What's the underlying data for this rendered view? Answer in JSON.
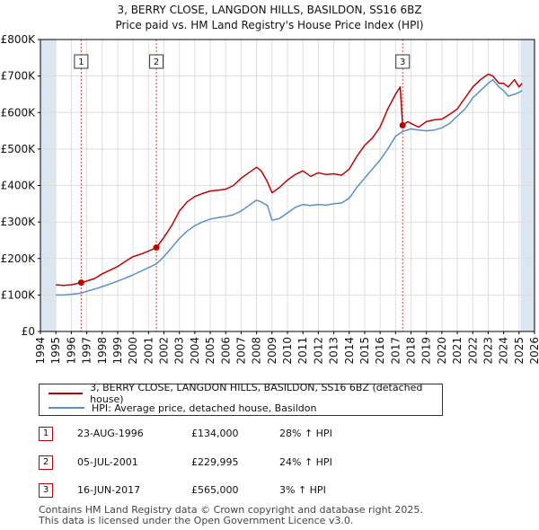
{
  "title": {
    "line1": "3, BERRY CLOSE, LANGDON HILLS, BASILDON, SS16 6BZ",
    "line2": "Price paid vs. HM Land Registry's House Price Index (HPI)"
  },
  "colors": {
    "property": "#c00000",
    "hpi": "#5b8fc9",
    "grid": "#dddddd",
    "shade": "#dce6f1",
    "vline": "#e04040"
  },
  "legend": {
    "property_label": "3, BERRY CLOSE, LANGDON HILLS, BASILDON, SS16 6BZ (detached house)",
    "hpi_label": "HPI: Average price, detached house, Basildon"
  },
  "sales": [
    {
      "num": "1",
      "date": "23-AUG-1996",
      "price": "£134,000",
      "hpi_change": "28% ↑ HPI"
    },
    {
      "num": "2",
      "date": "05-JUL-2001",
      "price": "£229,995",
      "hpi_change": "24% ↑ HPI"
    },
    {
      "num": "3",
      "date": "16-JUN-2017",
      "price": "£565,000",
      "hpi_change": "3% ↑ HPI"
    }
  ],
  "footer": {
    "line1": "Contains HM Land Registry data © Crown copyright and database right 2025.",
    "line2": "This data is licensed under the Open Government Licence v3.0."
  },
  "chart_data": {
    "type": "line",
    "title": "Price paid vs. HM Land Registry's House Price Index (HPI)",
    "xlabel": "",
    "ylabel": "",
    "xlim": [
      1994,
      2026
    ],
    "ylim": [
      0,
      800000
    ],
    "x_ticks": [
      1994,
      1995,
      1996,
      1997,
      1998,
      1999,
      2000,
      2001,
      2002,
      2003,
      2004,
      2005,
      2006,
      2007,
      2008,
      2009,
      2010,
      2011,
      2012,
      2013,
      2014,
      2015,
      2016,
      2017,
      2018,
      2019,
      2020,
      2021,
      2022,
      2023,
      2024,
      2025,
      2026
    ],
    "y_ticks": [
      0,
      100000,
      200000,
      300000,
      400000,
      500000,
      600000,
      700000,
      800000
    ],
    "y_tick_labels": [
      "£0",
      "£100K",
      "£200K",
      "£300K",
      "£400K",
      "£500K",
      "£600K",
      "£700K",
      "£800K"
    ],
    "shaded_ranges": [
      [
        1994,
        1995
      ],
      [
        2025.1,
        2026
      ]
    ],
    "sale_markers": [
      {
        "label": "1",
        "x": 1996.64,
        "y": 134000
      },
      {
        "label": "2",
        "x": 2001.51,
        "y": 229995
      },
      {
        "label": "3",
        "x": 2017.46,
        "y": 565000
      }
    ],
    "series": [
      {
        "name": "3, BERRY CLOSE, LANGDON HILLS, BASILDON, SS16 6BZ (detached house)",
        "color": "#c00000",
        "x": [
          1995.0,
          1995.5,
          1996.0,
          1996.64,
          1997.0,
          1997.5,
          1998.0,
          1998.5,
          1999.0,
          1999.5,
          2000.0,
          2000.5,
          2001.0,
          2001.51,
          2002.0,
          2002.5,
          2003.0,
          2003.5,
          2004.0,
          2004.5,
          2005.0,
          2005.5,
          2006.0,
          2006.5,
          2007.0,
          2007.5,
          2008.0,
          2008.3,
          2008.7,
          2009.0,
          2009.5,
          2010.0,
          2010.5,
          2011.0,
          2011.5,
          2012.0,
          2012.5,
          2013.0,
          2013.5,
          2014.0,
          2014.5,
          2015.0,
          2015.5,
          2016.0,
          2016.5,
          2017.0,
          2017.3,
          2017.46,
          2017.8,
          2018.0,
          2018.5,
          2019.0,
          2019.5,
          2020.0,
          2020.5,
          2021.0,
          2021.5,
          2022.0,
          2022.5,
          2023.0,
          2023.3,
          2023.7,
          2024.0,
          2024.3,
          2024.7,
          2025.0,
          2025.2
        ],
        "values": [
          128000,
          126000,
          128000,
          134000,
          138000,
          145000,
          158000,
          168000,
          178000,
          192000,
          205000,
          212000,
          220000,
          229995,
          258000,
          290000,
          330000,
          355000,
          370000,
          378000,
          385000,
          387000,
          390000,
          400000,
          420000,
          435000,
          450000,
          440000,
          410000,
          380000,
          395000,
          415000,
          430000,
          440000,
          425000,
          435000,
          430000,
          432000,
          428000,
          445000,
          480000,
          510000,
          530000,
          560000,
          610000,
          650000,
          670000,
          565000,
          575000,
          570000,
          560000,
          575000,
          580000,
          582000,
          595000,
          610000,
          640000,
          670000,
          690000,
          705000,
          700000,
          680000,
          680000,
          670000,
          690000,
          670000,
          680000
        ]
      },
      {
        "name": "HPI: Average price, detached house, Basildon",
        "color": "#5b8fc9",
        "x": [
          1995.0,
          1995.5,
          1996.0,
          1996.64,
          1997.0,
          1997.5,
          1998.0,
          1998.5,
          1999.0,
          1999.5,
          2000.0,
          2000.5,
          2001.0,
          2001.51,
          2002.0,
          2002.5,
          2003.0,
          2003.5,
          2004.0,
          2004.5,
          2005.0,
          2005.5,
          2006.0,
          2006.5,
          2007.0,
          2007.5,
          2008.0,
          2008.3,
          2008.7,
          2009.0,
          2009.5,
          2010.0,
          2010.5,
          2011.0,
          2011.5,
          2012.0,
          2012.5,
          2013.0,
          2013.5,
          2014.0,
          2014.5,
          2015.0,
          2015.5,
          2016.0,
          2016.5,
          2017.0,
          2017.46,
          2018.0,
          2018.5,
          2019.0,
          2019.5,
          2020.0,
          2020.5,
          2021.0,
          2021.5,
          2022.0,
          2022.5,
          2023.0,
          2023.3,
          2023.7,
          2024.0,
          2024.3,
          2024.7,
          2025.0,
          2025.2
        ],
        "values": [
          100000,
          100000,
          102000,
          105000,
          110000,
          116000,
          123000,
          130000,
          138000,
          146000,
          155000,
          165000,
          175000,
          185000,
          205000,
          230000,
          255000,
          275000,
          290000,
          300000,
          308000,
          312000,
          315000,
          320000,
          330000,
          345000,
          360000,
          355000,
          345000,
          305000,
          310000,
          325000,
          340000,
          348000,
          345000,
          348000,
          346000,
          350000,
          352000,
          365000,
          395000,
          420000,
          445000,
          470000,
          500000,
          535000,
          548000,
          555000,
          552000,
          550000,
          552000,
          558000,
          570000,
          590000,
          610000,
          640000,
          660000,
          680000,
          690000,
          670000,
          660000,
          645000,
          650000,
          655000,
          660000
        ]
      }
    ]
  }
}
